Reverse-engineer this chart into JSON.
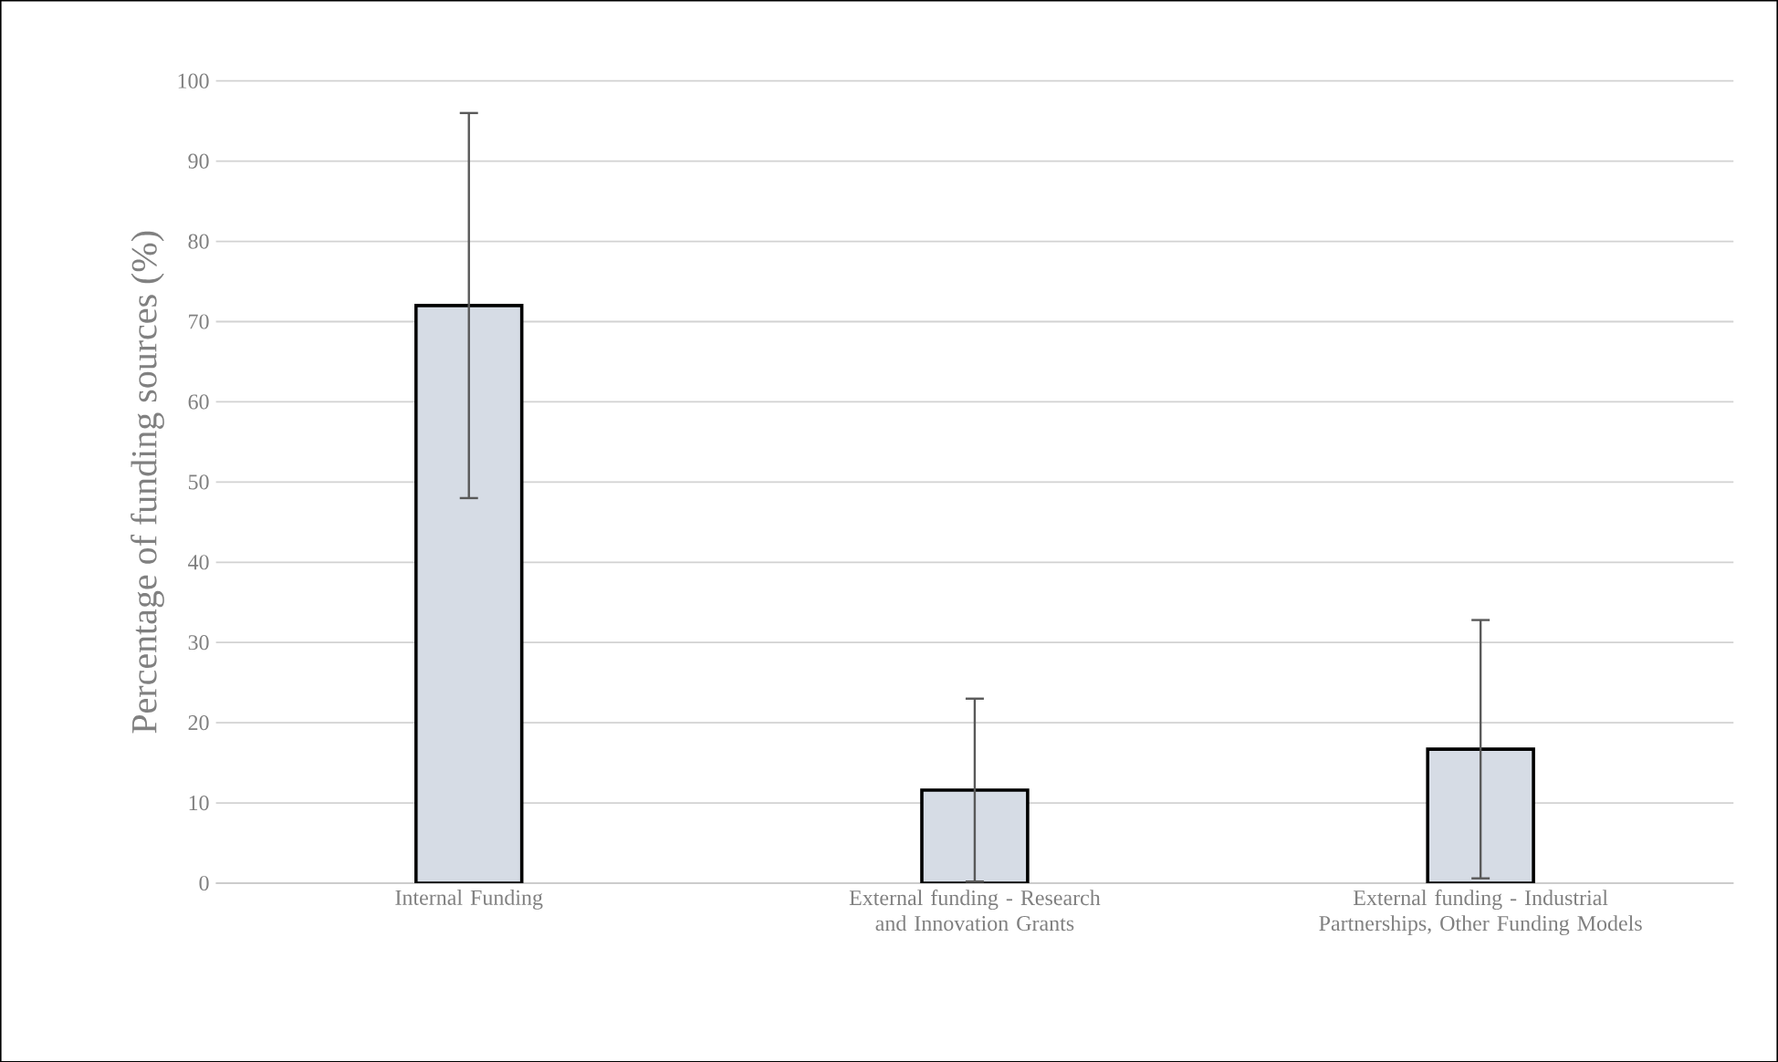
{
  "chart_data": {
    "type": "bar",
    "ylabel": "Percentage of funding sources (%)",
    "categories": [
      "Internal Funding",
      "External funding - Research and Innovation Grants",
      "External funding - Industrial Partnerships, Other Funding Models"
    ],
    "values": [
      72,
      11.6,
      16.7
    ],
    "errors": [
      24,
      11.4,
      16.1
    ],
    "color": "#d6dce5",
    "ylim": [
      0,
      100
    ],
    "yticks": [
      0,
      10,
      20,
      30,
      40,
      50,
      60,
      70,
      80,
      90,
      100
    ],
    "grid": "y"
  }
}
